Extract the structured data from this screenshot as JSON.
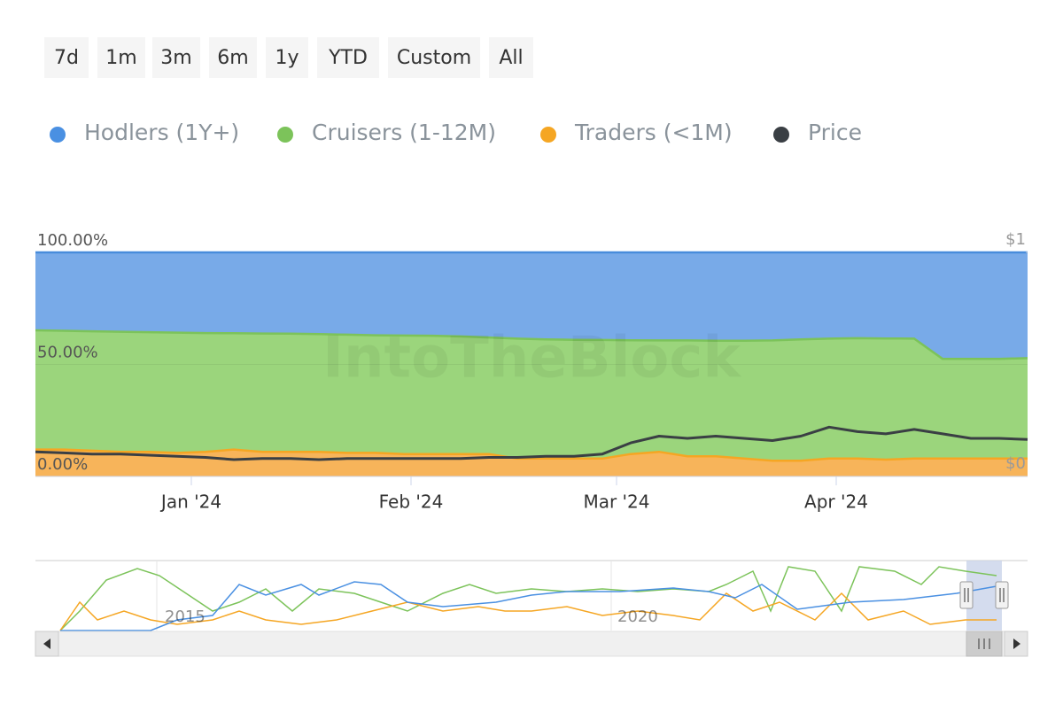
{
  "range_buttons": [
    "7d",
    "1m",
    "3m",
    "6m",
    "1y",
    "YTD",
    "Custom",
    "All"
  ],
  "watermark": "IntoTheBlock",
  "chart_data": {
    "type": "stacked-area",
    "x": [
      0,
      4,
      8,
      12,
      16,
      20,
      24,
      28,
      32,
      36,
      40,
      44,
      48,
      52,
      56,
      60,
      64,
      68,
      72,
      76,
      80,
      84,
      88,
      92,
      96,
      100,
      104,
      108,
      112,
      116,
      120,
      124,
      128,
      132,
      136,
      140
    ],
    "xlim": [
      0,
      140
    ],
    "xticks": [
      {
        "value": 22,
        "label": "Jan '24"
      },
      {
        "value": 53,
        "label": "Feb '24"
      },
      {
        "value": 82,
        "label": "Mar '24"
      },
      {
        "value": 113,
        "label": "Apr '24"
      }
    ],
    "ylim": [
      0,
      100
    ],
    "yticks": [
      {
        "value": 0,
        "label": "0.00%"
      },
      {
        "value": 50,
        "label": "50.00%"
      },
      {
        "value": 100,
        "label": "100.00%"
      }
    ],
    "y2lim": [
      0,
      1
    ],
    "y2ticks": [
      {
        "value": 0,
        "label": "$0"
      },
      {
        "value": 1,
        "label": "$1"
      }
    ],
    "legend": "top-left",
    "series": [
      {
        "name": "Hodlers (1Y+)",
        "color": "#4a90e2",
        "fill": "#78aae8",
        "values": [
          34.8,
          35.0,
          35.2,
          35.4,
          35.6,
          35.8,
          36.0,
          36.1,
          36.2,
          36.3,
          36.5,
          36.7,
          37.0,
          37.1,
          37.2,
          37.5,
          38.0,
          38.5,
          38.8,
          39.0,
          39.1,
          39.2,
          39.3,
          39.3,
          39.4,
          39.4,
          39.3,
          38.8,
          38.5,
          38.3,
          38.4,
          38.5,
          47.5,
          47.5,
          47.5,
          47.2
        ]
      },
      {
        "name": "Cruisers (1-12M)",
        "color": "#7cc35a",
        "fill": "#9bd57c",
        "values": [
          53.2,
          53.0,
          53.3,
          53.6,
          53.4,
          53.7,
          53.0,
          51.9,
          52.8,
          52.7,
          52.5,
          52.8,
          52.5,
          52.9,
          52.8,
          52.5,
          52.0,
          53.5,
          53.2,
          53.0,
          52.9,
          50.8,
          49.7,
          51.7,
          51.6,
          52.6,
          53.7,
          54.2,
          53.5,
          53.7,
          54.1,
          53.5,
          44.5,
          44.5,
          44.5,
          44.8
        ]
      },
      {
        "name": "Traders (<1M)",
        "color": "#f5a623",
        "fill": "#f7b45a",
        "values": [
          12,
          12,
          11.5,
          11,
          11,
          10.5,
          11,
          12,
          11,
          11,
          11,
          10.5,
          10.5,
          10,
          10,
          10,
          10,
          8,
          8,
          8,
          8,
          10,
          11,
          9,
          9,
          8,
          7,
          7,
          8,
          8,
          7.5,
          8,
          8,
          8,
          8,
          8
        ]
      },
      {
        "name": "Price",
        "color": "#3a3f44",
        "axis": "y2",
        "values": [
          0.11,
          0.105,
          0.1,
          0.1,
          0.095,
          0.09,
          0.085,
          0.075,
          0.08,
          0.08,
          0.075,
          0.08,
          0.08,
          0.08,
          0.08,
          0.08,
          0.085,
          0.085,
          0.09,
          0.09,
          0.1,
          0.15,
          0.18,
          0.17,
          0.18,
          0.17,
          0.16,
          0.18,
          0.22,
          0.2,
          0.19,
          0.21,
          0.19,
          0.17,
          0.17,
          0.165
        ]
      }
    ]
  },
  "navigator": {
    "labels": [
      "2015",
      "2020"
    ]
  }
}
